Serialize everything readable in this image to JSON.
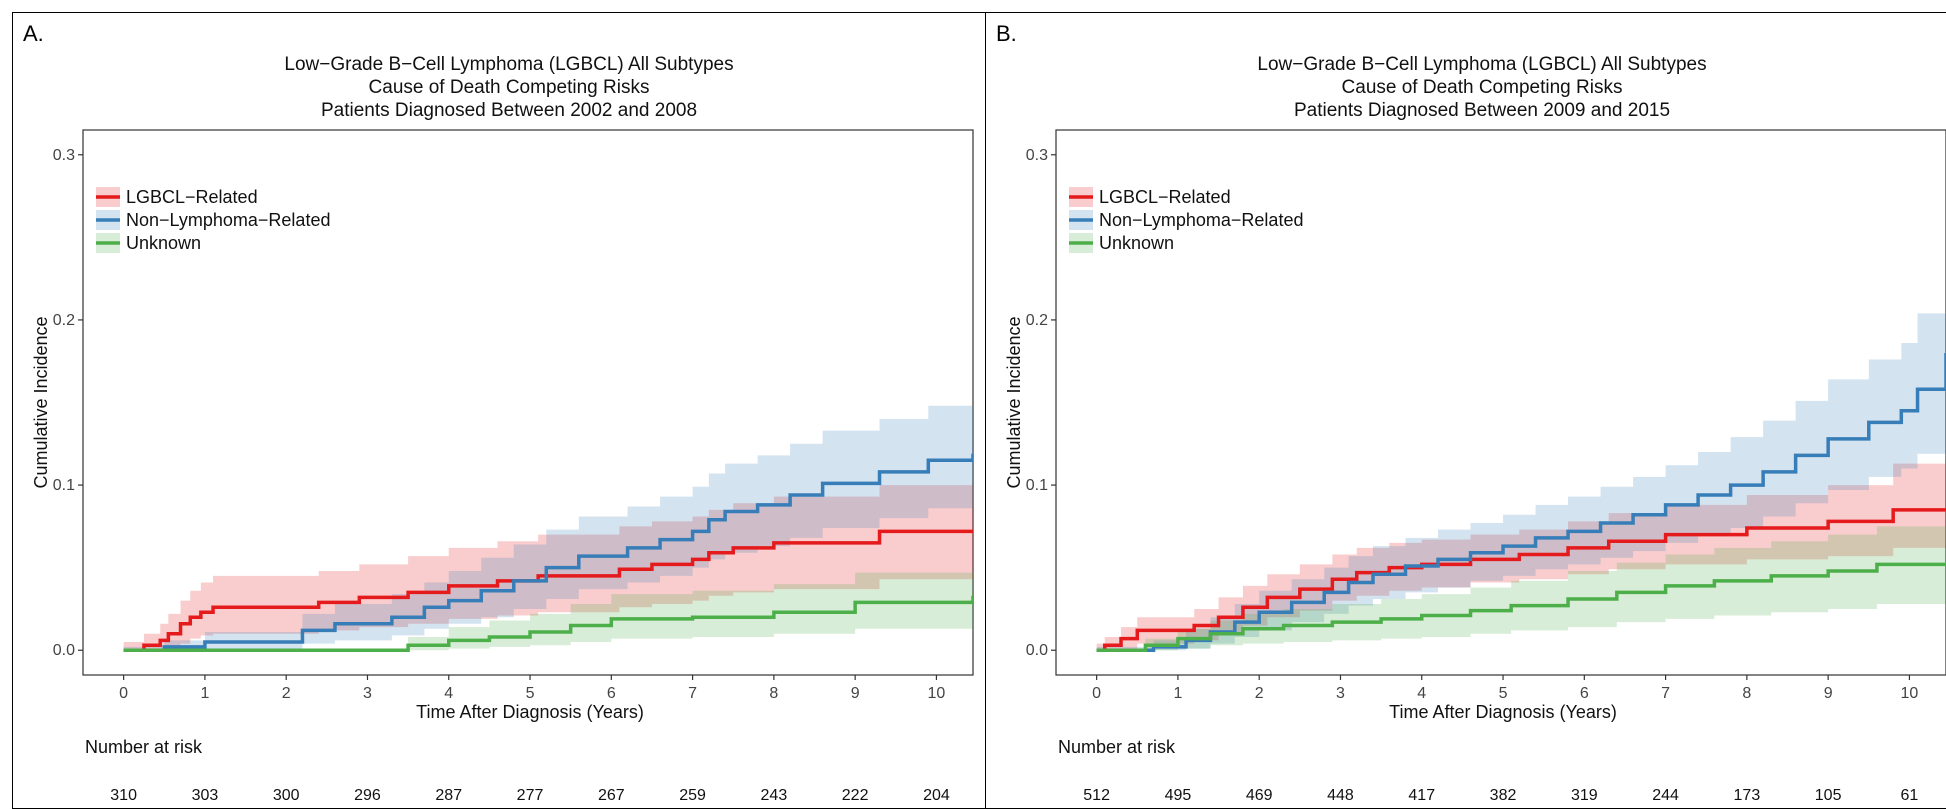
{
  "colors": {
    "lgbcl": "#e41a1c",
    "nonlymph": "#377eb8",
    "unknown": "#4daf4a"
  },
  "chart_data": [
    {
      "panel_label": "A.",
      "type": "line",
      "title": [
        "Low−Grade B−Cell Lymphoma (LGBCL) All Subtypes",
        "Cause of Death Competing Risks",
        "Patients Diagnosed Between 2002 and 2008"
      ],
      "xlabel": "Time After Diagnosis (Years)",
      "ylabel": "Cumulative Incidence",
      "xlim": [
        -0.5,
        10.45
      ],
      "ylim": [
        -0.015,
        0.315
      ],
      "xticks": [
        0,
        1,
        2,
        3,
        4,
        5,
        6,
        7,
        8,
        9,
        10
      ],
      "yticks": [
        0.0,
        0.1,
        0.2,
        0.3
      ],
      "ytick_labels": [
        "0.0",
        "0.1",
        "0.2",
        "0.3"
      ],
      "grid": false,
      "legend_position": "top-left",
      "risk_table_label": "Number at risk",
      "risk_table": [
        "310",
        "303",
        "300",
        "296",
        "287",
        "277",
        "267",
        "259",
        "243",
        "222",
        "204"
      ],
      "series": [
        {
          "name": "LGBCL−Related",
          "color_key": "lgbcl",
          "x": [
            0,
            0.25,
            0.45,
            0.55,
            0.7,
            0.82,
            0.95,
            1.1,
            2.4,
            2.9,
            3.5,
            4.0,
            4.6,
            5.1,
            6.1,
            6.5,
            7.0,
            7.2,
            7.5,
            8.0,
            9.3,
            10.45
          ],
          "y": [
            0,
            0.003,
            0.006,
            0.01,
            0.016,
            0.02,
            0.023,
            0.026,
            0.029,
            0.032,
            0.035,
            0.039,
            0.042,
            0.045,
            0.049,
            0.052,
            0.055,
            0.059,
            0.062,
            0.065,
            0.072,
            0.072
          ],
          "lower": [
            0,
            0,
            0,
            0.001,
            0.004,
            0.007,
            0.009,
            0.01,
            0.012,
            0.014,
            0.016,
            0.019,
            0.021,
            0.023,
            0.026,
            0.028,
            0.03,
            0.033,
            0.035,
            0.037,
            0.043,
            0.043
          ],
          "upper": [
            0.005,
            0.01,
            0.016,
            0.022,
            0.03,
            0.036,
            0.041,
            0.045,
            0.048,
            0.052,
            0.057,
            0.062,
            0.066,
            0.07,
            0.075,
            0.078,
            0.081,
            0.085,
            0.089,
            0.093,
            0.1,
            0.1
          ]
        },
        {
          "name": "Non−Lymphoma−Related",
          "color_key": "nonlymph",
          "x": [
            0,
            0.5,
            1.0,
            2.2,
            2.6,
            3.3,
            3.7,
            4.0,
            4.4,
            4.8,
            5.2,
            5.6,
            6.2,
            6.6,
            7.0,
            7.2,
            7.4,
            7.8,
            8.2,
            8.6,
            9.3,
            9.9,
            10.45
          ],
          "y": [
            0,
            0.002,
            0.005,
            0.012,
            0.016,
            0.02,
            0.026,
            0.03,
            0.036,
            0.042,
            0.05,
            0.057,
            0.062,
            0.067,
            0.072,
            0.079,
            0.084,
            0.088,
            0.094,
            0.101,
            0.108,
            0.115,
            0.119
          ],
          "lower": [
            0,
            0,
            0,
            0.004,
            0.006,
            0.009,
            0.013,
            0.016,
            0.02,
            0.025,
            0.031,
            0.037,
            0.041,
            0.045,
            0.05,
            0.055,
            0.059,
            0.063,
            0.068,
            0.074,
            0.08,
            0.086,
            0.089
          ],
          "upper": [
            0.002,
            0.006,
            0.011,
            0.022,
            0.028,
            0.034,
            0.041,
            0.048,
            0.056,
            0.064,
            0.073,
            0.081,
            0.087,
            0.093,
            0.099,
            0.107,
            0.113,
            0.118,
            0.125,
            0.133,
            0.14,
            0.148,
            0.157
          ]
        },
        {
          "name": "Unknown",
          "color_key": "unknown",
          "x": [
            0,
            3.5,
            4.0,
            4.5,
            5.0,
            5.5,
            6.0,
            6.5,
            7.0,
            8.0,
            9.0,
            10.45
          ],
          "y": [
            0,
            0.003,
            0.006,
            0.008,
            0.011,
            0.015,
            0.019,
            0.019,
            0.02,
            0.023,
            0.029,
            0.033
          ],
          "lower": [
            0,
            0,
            0.001,
            0.002,
            0.003,
            0.005,
            0.007,
            0.007,
            0.008,
            0.01,
            0.013,
            0.016
          ],
          "upper": [
            0,
            0.008,
            0.014,
            0.018,
            0.022,
            0.028,
            0.034,
            0.034,
            0.036,
            0.04,
            0.047,
            0.053
          ]
        }
      ]
    },
    {
      "panel_label": "B.",
      "type": "line",
      "title": [
        "Low−Grade B−Cell Lymphoma (LGBCL) All Subtypes",
        "Cause of Death Competing Risks",
        "Patients Diagnosed Between 2009 and 2015"
      ],
      "xlabel": "Time After Diagnosis (Years)",
      "ylabel": "Cumulative Incidence",
      "xlim": [
        -0.5,
        10.45
      ],
      "ylim": [
        -0.015,
        0.315
      ],
      "xticks": [
        0,
        1,
        2,
        3,
        4,
        5,
        6,
        7,
        8,
        9,
        10
      ],
      "yticks": [
        0.0,
        0.1,
        0.2,
        0.3
      ],
      "ytick_labels": [
        "0.0",
        "0.1",
        "0.2",
        "0.3"
      ],
      "grid": false,
      "legend_position": "top-left",
      "risk_table_label": "Number at risk",
      "risk_table": [
        "512",
        "495",
        "469",
        "448",
        "417",
        "382",
        "319",
        "244",
        "173",
        "105",
        "61"
      ],
      "series": [
        {
          "name": "LGBCL−Related",
          "color_key": "lgbcl",
          "x": [
            0,
            0.1,
            0.3,
            0.5,
            1.2,
            1.5,
            1.8,
            2.1,
            2.5,
            2.9,
            3.2,
            3.6,
            4.0,
            4.6,
            5.2,
            5.8,
            6.3,
            7.0,
            8.0,
            9.0,
            9.8,
            10.45
          ],
          "y": [
            0,
            0.003,
            0.007,
            0.012,
            0.015,
            0.02,
            0.026,
            0.032,
            0.037,
            0.043,
            0.047,
            0.05,
            0.052,
            0.055,
            0.058,
            0.062,
            0.066,
            0.07,
            0.074,
            0.078,
            0.085,
            0.086
          ],
          "lower": [
            0,
            0,
            0.001,
            0.004,
            0.006,
            0.01,
            0.015,
            0.02,
            0.024,
            0.03,
            0.033,
            0.036,
            0.038,
            0.041,
            0.043,
            0.046,
            0.049,
            0.052,
            0.055,
            0.057,
            0.062,
            0.062
          ],
          "upper": [
            0.004,
            0.008,
            0.014,
            0.02,
            0.025,
            0.032,
            0.039,
            0.046,
            0.052,
            0.058,
            0.062,
            0.065,
            0.067,
            0.07,
            0.073,
            0.078,
            0.083,
            0.088,
            0.094,
            0.1,
            0.113,
            0.116
          ]
        },
        {
          "name": "Non−Lymphoma−Related",
          "color_key": "nonlymph",
          "x": [
            0,
            0.7,
            1.1,
            1.4,
            1.7,
            2.0,
            2.4,
            2.8,
            3.1,
            3.4,
            3.8,
            4.2,
            4.6,
            5.0,
            5.4,
            5.8,
            6.2,
            6.6,
            7.0,
            7.4,
            7.8,
            8.2,
            8.6,
            9.0,
            9.5,
            9.9,
            10.1,
            10.45
          ],
          "y": [
            0,
            0.002,
            0.006,
            0.011,
            0.017,
            0.023,
            0.029,
            0.035,
            0.041,
            0.046,
            0.051,
            0.055,
            0.059,
            0.063,
            0.068,
            0.072,
            0.077,
            0.082,
            0.088,
            0.094,
            0.1,
            0.108,
            0.118,
            0.128,
            0.138,
            0.145,
            0.158,
            0.18
          ],
          "lower": [
            0,
            0,
            0.001,
            0.004,
            0.008,
            0.012,
            0.017,
            0.022,
            0.027,
            0.031,
            0.035,
            0.038,
            0.042,
            0.045,
            0.049,
            0.052,
            0.056,
            0.06,
            0.065,
            0.069,
            0.074,
            0.081,
            0.089,
            0.097,
            0.105,
            0.11,
            0.119,
            0.134
          ],
          "upper": [
            0.002,
            0.006,
            0.013,
            0.02,
            0.028,
            0.036,
            0.043,
            0.05,
            0.057,
            0.063,
            0.068,
            0.073,
            0.077,
            0.082,
            0.088,
            0.093,
            0.099,
            0.105,
            0.112,
            0.12,
            0.129,
            0.139,
            0.151,
            0.164,
            0.176,
            0.186,
            0.204,
            0.236
          ]
        },
        {
          "name": "Unknown",
          "color_key": "unknown",
          "x": [
            0,
            0.6,
            1.0,
            1.4,
            1.8,
            2.3,
            2.9,
            3.5,
            4.0,
            4.6,
            5.1,
            5.8,
            6.4,
            7.0,
            7.6,
            8.3,
            9.0,
            9.6,
            10.45
          ],
          "y": [
            0,
            0.003,
            0.007,
            0.01,
            0.013,
            0.015,
            0.017,
            0.019,
            0.021,
            0.024,
            0.027,
            0.031,
            0.035,
            0.039,
            0.042,
            0.045,
            0.048,
            0.052,
            0.053
          ],
          "lower": [
            0,
            0,
            0.001,
            0.003,
            0.004,
            0.005,
            0.006,
            0.007,
            0.008,
            0.01,
            0.012,
            0.014,
            0.017,
            0.019,
            0.021,
            0.023,
            0.025,
            0.028,
            0.029
          ],
          "upper": [
            0.001,
            0.007,
            0.013,
            0.018,
            0.022,
            0.025,
            0.028,
            0.031,
            0.034,
            0.038,
            0.042,
            0.048,
            0.053,
            0.058,
            0.062,
            0.066,
            0.07,
            0.075,
            0.077
          ]
        }
      ]
    }
  ]
}
